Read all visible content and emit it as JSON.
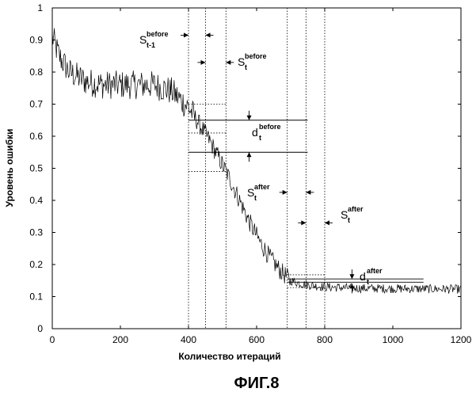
{
  "chart_data": {
    "type": "line",
    "xlabel": "Количество итераций",
    "ylabel": "Уровень ошибки",
    "xlim": [
      0,
      1200
    ],
    "ylim": [
      0,
      1
    ],
    "x_ticks": [
      "0",
      "200",
      "400",
      "600",
      "800",
      "1000",
      "1200"
    ],
    "y_ticks": [
      "0",
      "0.1",
      "0.2",
      "0.3",
      "0.4",
      "0.5",
      "0.6",
      "0.7",
      "0.8",
      "0.9",
      "1"
    ],
    "series": [
      {
        "x": [
          0,
          20,
          50,
          100,
          150,
          200,
          250,
          300,
          350,
          400,
          430,
          460,
          490,
          520,
          550,
          580,
          610,
          640,
          670,
          700,
          730,
          760,
          800,
          850,
          900,
          1000,
          1100,
          1200
        ],
        "y": [
          0.91,
          0.85,
          0.8,
          0.77,
          0.76,
          0.76,
          0.76,
          0.76,
          0.74,
          0.69,
          0.64,
          0.59,
          0.53,
          0.47,
          0.4,
          0.33,
          0.27,
          0.22,
          0.18,
          0.15,
          0.14,
          0.135,
          0.13,
          0.128,
          0.126,
          0.125,
          0.124,
          0.123
        ]
      }
    ],
    "markers_x": [
      400,
      450,
      510,
      690,
      745,
      800
    ],
    "levels": {
      "before_top": 0.65,
      "before_bottom": 0.55,
      "after_top": 0.155,
      "after_bottom": 0.145
    },
    "annotations": [
      {
        "id": "s-t-1-before",
        "main": "S",
        "sub": "t-1",
        "sup": "before"
      },
      {
        "id": "s-t-before",
        "main": "S",
        "sub": "t",
        "sup": "before"
      },
      {
        "id": "d-t-before",
        "main": "d",
        "sub": "t",
        "sup": "before"
      },
      {
        "id": "s-t-after-1",
        "main": "S",
        "sub": "t",
        "sup": "after"
      },
      {
        "id": "s-t-after-2",
        "main": "S",
        "sub": "t",
        "sup": "after"
      },
      {
        "id": "d-t-after",
        "main": "d",
        "sub": "t",
        "sup": "after"
      }
    ]
  },
  "figure_label": "ФИГ.8"
}
